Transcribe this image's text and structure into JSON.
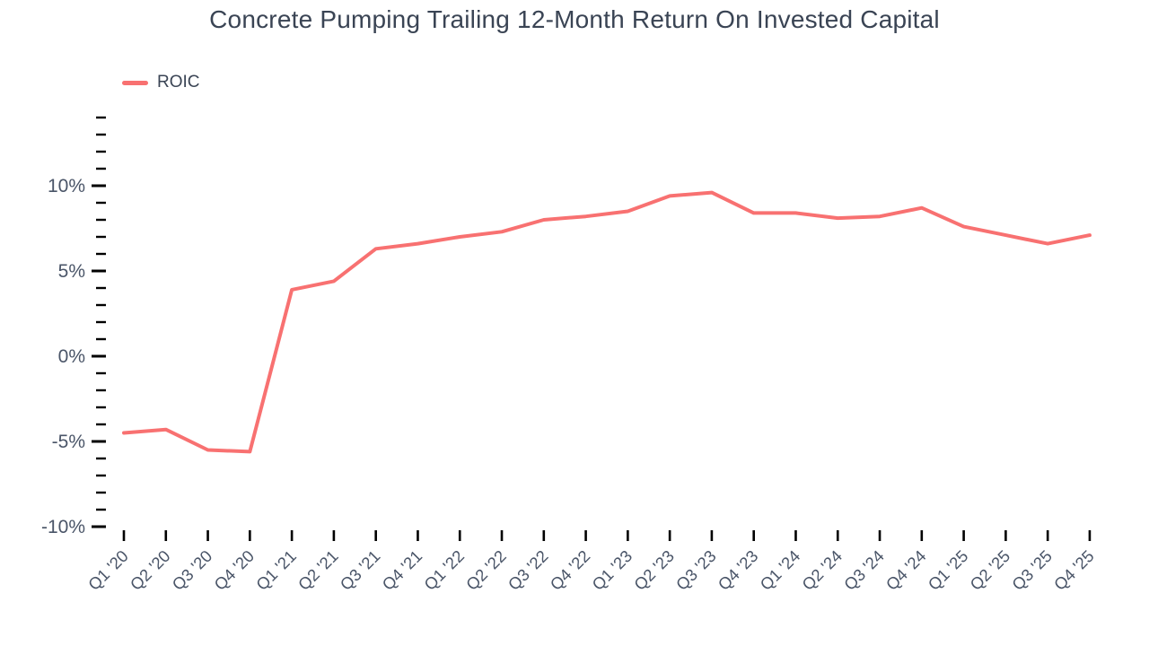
{
  "colors": {
    "background": "#FFFFFF",
    "accent_line": "#F87171",
    "title_text": "#3A4454",
    "tick_label_text": "#4A5568",
    "tick_mark": "#000000"
  },
  "chart_data": {
    "type": "line",
    "title": "Concrete Pumping Trailing 12-Month Return On Invested Capital",
    "legend_position": "top-left",
    "grid": false,
    "categories": [
      "Q1 '20",
      "Q2 '20",
      "Q3 '20",
      "Q4 '20",
      "Q1 '21",
      "Q2 '21",
      "Q3 '21",
      "Q4 '21",
      "Q1 '22",
      "Q2 '22",
      "Q3 '22",
      "Q4 '22",
      "Q1 '23",
      "Q2 '23",
      "Q3 '23",
      "Q4 '23",
      "Q1 '24",
      "Q2 '24",
      "Q3 '24",
      "Q4 '24",
      "Q1 '25",
      "Q2 '25",
      "Q3 '25",
      "Q4 '25"
    ],
    "series": [
      {
        "name": "ROIC",
        "color": "#F87171",
        "unit": "%",
        "values": [
          -4.5,
          -4.3,
          -5.5,
          -5.6,
          3.9,
          4.4,
          6.3,
          6.6,
          7.0,
          7.3,
          8.0,
          8.2,
          8.5,
          9.4,
          9.6,
          8.4,
          8.4,
          8.1,
          8.2,
          8.7,
          7.6,
          7.1,
          6.6,
          7.1
        ]
      }
    ],
    "y_axis": {
      "min": -10,
      "max": 14,
      "minor_step": 1,
      "major_step": 5,
      "major_labels": [
        {
          "value": -10,
          "label": "-10%"
        },
        {
          "value": -5,
          "label": "-5%"
        },
        {
          "value": 0,
          "label": "0%"
        },
        {
          "value": 5,
          "label": "5%"
        },
        {
          "value": 10,
          "label": "10%"
        }
      ]
    }
  }
}
